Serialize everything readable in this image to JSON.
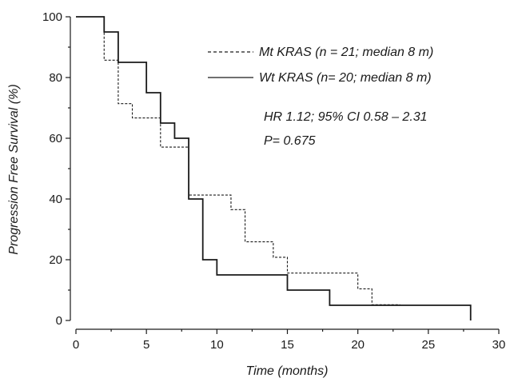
{
  "chart_data": {
    "type": "line",
    "xlabel": "Time (months)",
    "ylabel": "Progression Free Survival (%)",
    "xlim": [
      0,
      30
    ],
    "ylim": [
      0,
      100
    ],
    "xticks": [
      0,
      5,
      10,
      15,
      20,
      25,
      30
    ],
    "yticks": [
      0,
      20,
      40,
      60,
      80,
      100
    ],
    "grid": false,
    "legend_position": "top-right",
    "series": [
      {
        "name": "Mt KRAS (n = 21; median 8 m)",
        "style": "dashed",
        "color": "#1a1a1a",
        "x": [
          0,
          2,
          3,
          4,
          6,
          8,
          11,
          12,
          14,
          15,
          20,
          21,
          23
        ],
        "y": [
          100,
          85.7,
          71.4,
          66.7,
          57.1,
          41.3,
          36.5,
          25.9,
          20.8,
          15.6,
          10.4,
          5.2,
          5.2
        ]
      },
      {
        "name": "Wt KRAS (n= 20; median 8 m)",
        "style": "solid",
        "color": "#1a1a1a",
        "x": [
          0,
          2,
          3,
          5,
          6,
          7,
          8,
          9,
          10,
          15,
          18,
          28
        ],
        "y": [
          100,
          95,
          85,
          75,
          65,
          60,
          40,
          20,
          15,
          10,
          5,
          0
        ]
      }
    ],
    "annotations": [
      "HR 1.12; 95% CI 0.58 – 2.31",
      "P= 0.675"
    ]
  }
}
